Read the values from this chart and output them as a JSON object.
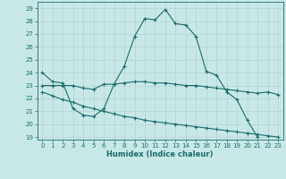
{
  "xlabel": "Humidex (Indice chaleur)",
  "background_color": "#c8e8e8",
  "line_color": "#1a6b6b",
  "xlim": [
    -0.5,
    23.5
  ],
  "ylim": [
    18.8,
    29.5
  ],
  "yticks": [
    19,
    20,
    21,
    22,
    23,
    24,
    25,
    26,
    27,
    28,
    29
  ],
  "xticks": [
    0,
    1,
    2,
    3,
    4,
    5,
    6,
    7,
    8,
    9,
    10,
    11,
    12,
    13,
    14,
    15,
    16,
    17,
    18,
    19,
    20,
    21,
    22,
    23
  ],
  "line1_x": [
    0,
    1,
    2,
    3,
    4,
    5,
    6,
    7,
    8,
    9,
    10,
    11,
    12,
    13,
    14,
    15,
    16,
    17,
    18,
    19,
    20,
    21
  ],
  "line1_y": [
    24.0,
    23.3,
    23.2,
    21.2,
    20.7,
    20.6,
    21.2,
    23.1,
    24.5,
    26.8,
    28.2,
    28.1,
    28.9,
    27.8,
    27.7,
    26.8,
    24.1,
    23.8,
    22.5,
    21.9,
    20.3,
    19.0
  ],
  "line2_x": [
    0,
    1,
    2,
    3,
    4,
    5,
    6,
    7,
    8,
    9,
    10,
    11,
    12,
    13,
    14,
    15,
    16,
    17,
    18,
    19,
    20,
    21,
    22,
    23
  ],
  "line2_y": [
    23.0,
    23.0,
    23.0,
    23.0,
    22.8,
    22.7,
    23.1,
    23.1,
    23.2,
    23.3,
    23.3,
    23.2,
    23.2,
    23.1,
    23.0,
    23.0,
    22.9,
    22.8,
    22.7,
    22.6,
    22.5,
    22.4,
    22.5,
    22.3
  ],
  "line3_x": [
    0,
    1,
    2,
    3,
    4,
    5,
    6,
    7,
    8,
    9,
    10,
    11,
    12,
    13,
    14,
    15,
    16,
    17,
    18,
    19,
    20,
    21,
    22,
    23
  ],
  "line3_y": [
    22.5,
    22.2,
    21.9,
    21.7,
    21.4,
    21.2,
    21.0,
    20.8,
    20.6,
    20.5,
    20.3,
    20.2,
    20.1,
    20.0,
    19.9,
    19.8,
    19.7,
    19.6,
    19.5,
    19.4,
    19.3,
    19.2,
    19.1,
    19.0
  ]
}
